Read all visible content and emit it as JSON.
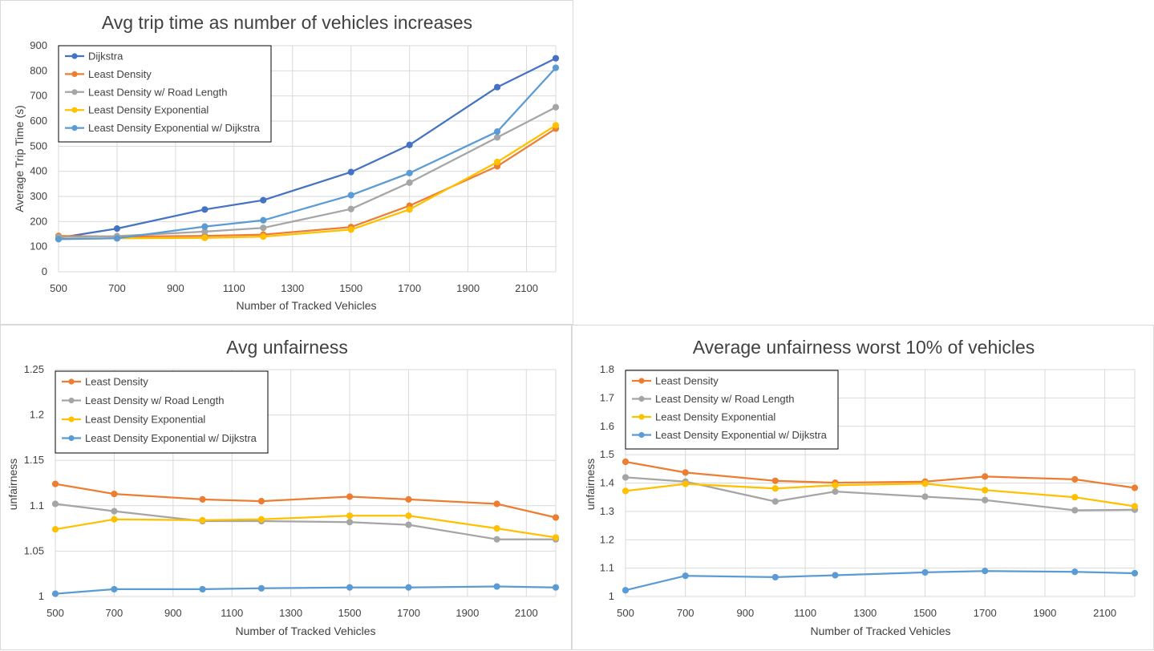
{
  "charts": [
    {
      "title": "Avg trip time as number of vehicles increases",
      "xlabel": "Number of Tracked Vehicles",
      "ylabel": "Average Trip Time (s)",
      "xticks": [
        "500",
        "700",
        "900",
        "1100",
        "1300",
        "1500",
        "1700",
        "1900",
        "2100"
      ],
      "yticks": [
        "0",
        "100",
        "200",
        "300",
        "400",
        "500",
        "600",
        "700",
        "800",
        "900"
      ]
    },
    {
      "title": "Avg unfairness",
      "xlabel": "Number of Tracked Vehicles",
      "ylabel": "unfairness",
      "xticks": [
        "500",
        "700",
        "900",
        "1100",
        "1300",
        "1500",
        "1700",
        "1900",
        "2100"
      ],
      "yticks": [
        "1",
        "1.05",
        "1.1",
        "1.15",
        "1.2",
        "1.25"
      ]
    },
    {
      "title": "Average unfairness worst 10% of vehicles",
      "xlabel": "Number of Tracked Vehicles",
      "ylabel": "unfairness",
      "xticks": [
        "500",
        "700",
        "900",
        "1100",
        "1300",
        "1500",
        "1700",
        "1900",
        "2100"
      ],
      "yticks": [
        "1",
        "1.1",
        "1.2",
        "1.3",
        "1.4",
        "1.5",
        "1.6",
        "1.7",
        "1.8"
      ]
    }
  ],
  "chart_data": [
    {
      "type": "line",
      "title": "Avg trip time as number of vehicles increases",
      "xlabel": "Number of Tracked Vehicles",
      "ylabel": "Average Trip Time (s)",
      "xlim": [
        500,
        2200
      ],
      "ylim": [
        0,
        900
      ],
      "grid": true,
      "legend_position": "top-left",
      "x": [
        500,
        700,
        1000,
        1200,
        1500,
        1700,
        2000,
        2200
      ],
      "series": [
        {
          "name": "Dijkstra",
          "color": "#4472C4",
          "values": [
            135,
            172,
            248,
            285,
            397,
            505,
            735,
            850
          ]
        },
        {
          "name": "Least Density",
          "color": "#ED7D31",
          "values": [
            143,
            140,
            143,
            148,
            178,
            263,
            420,
            570
          ]
        },
        {
          "name": "Least Density w/ Road Length",
          "color": "#A5A5A5",
          "values": [
            138,
            142,
            160,
            175,
            250,
            355,
            535,
            655
          ]
        },
        {
          "name": "Least Density Exponential",
          "color": "#FFC000",
          "values": [
            130,
            133,
            135,
            140,
            168,
            248,
            437,
            583
          ]
        },
        {
          "name": "Least Density Exponential w/ Dijkstra",
          "color": "#5B9BD5",
          "values": [
            130,
            133,
            180,
            205,
            305,
            393,
            558,
            812
          ]
        }
      ]
    },
    {
      "type": "line",
      "title": "Avg unfairness",
      "xlabel": "Number of Tracked Vehicles",
      "ylabel": "unfairness",
      "xlim": [
        500,
        2200
      ],
      "ylim": [
        1,
        1.25
      ],
      "grid": true,
      "legend_position": "top-left",
      "x": [
        500,
        700,
        1000,
        1200,
        1500,
        1700,
        2000,
        2200
      ],
      "series": [
        {
          "name": "Least Density",
          "color": "#ED7D31",
          "values": [
            1.124,
            1.113,
            1.107,
            1.105,
            1.11,
            1.107,
            1.102,
            1.087
          ]
        },
        {
          "name": "Least Density w/ Road Length",
          "color": "#A5A5A5",
          "values": [
            1.102,
            1.094,
            1.083,
            1.083,
            1.082,
            1.079,
            1.063,
            1.063
          ]
        },
        {
          "name": "Least Density Exponential",
          "color": "#FFC000",
          "values": [
            1.074,
            1.085,
            1.084,
            1.085,
            1.089,
            1.089,
            1.075,
            1.065
          ]
        },
        {
          "name": "Least Density Exponential w/ Dijkstra",
          "color": "#5B9BD5",
          "values": [
            1.003,
            1.008,
            1.008,
            1.009,
            1.01,
            1.01,
            1.011,
            1.01
          ]
        }
      ]
    },
    {
      "type": "line",
      "title": "Average unfairness worst 10% of vehicles",
      "xlabel": "Number of Tracked Vehicles",
      "ylabel": "unfairness",
      "xlim": [
        500,
        2200
      ],
      "ylim": [
        1,
        1.8
      ],
      "grid": true,
      "legend_position": "top-left",
      "x": [
        500,
        700,
        1000,
        1200,
        1500,
        1700,
        2000,
        2200
      ],
      "series": [
        {
          "name": "Least Density",
          "color": "#ED7D31",
          "values": [
            1.475,
            1.437,
            1.408,
            1.401,
            1.405,
            1.423,
            1.413,
            1.383
          ]
        },
        {
          "name": "Least Density w/ Road Length",
          "color": "#A5A5A5",
          "values": [
            1.42,
            1.405,
            1.335,
            1.37,
            1.352,
            1.34,
            1.304,
            1.306
          ]
        },
        {
          "name": "Least Density Exponential",
          "color": "#FFC000",
          "values": [
            1.372,
            1.397,
            1.381,
            1.392,
            1.398,
            1.375,
            1.35,
            1.318
          ]
        },
        {
          "name": "Least Density Exponential w/ Dijkstra",
          "color": "#5B9BD5",
          "values": [
            1.022,
            1.073,
            1.068,
            1.075,
            1.085,
            1.09,
            1.087,
            1.082
          ]
        }
      ]
    }
  ]
}
